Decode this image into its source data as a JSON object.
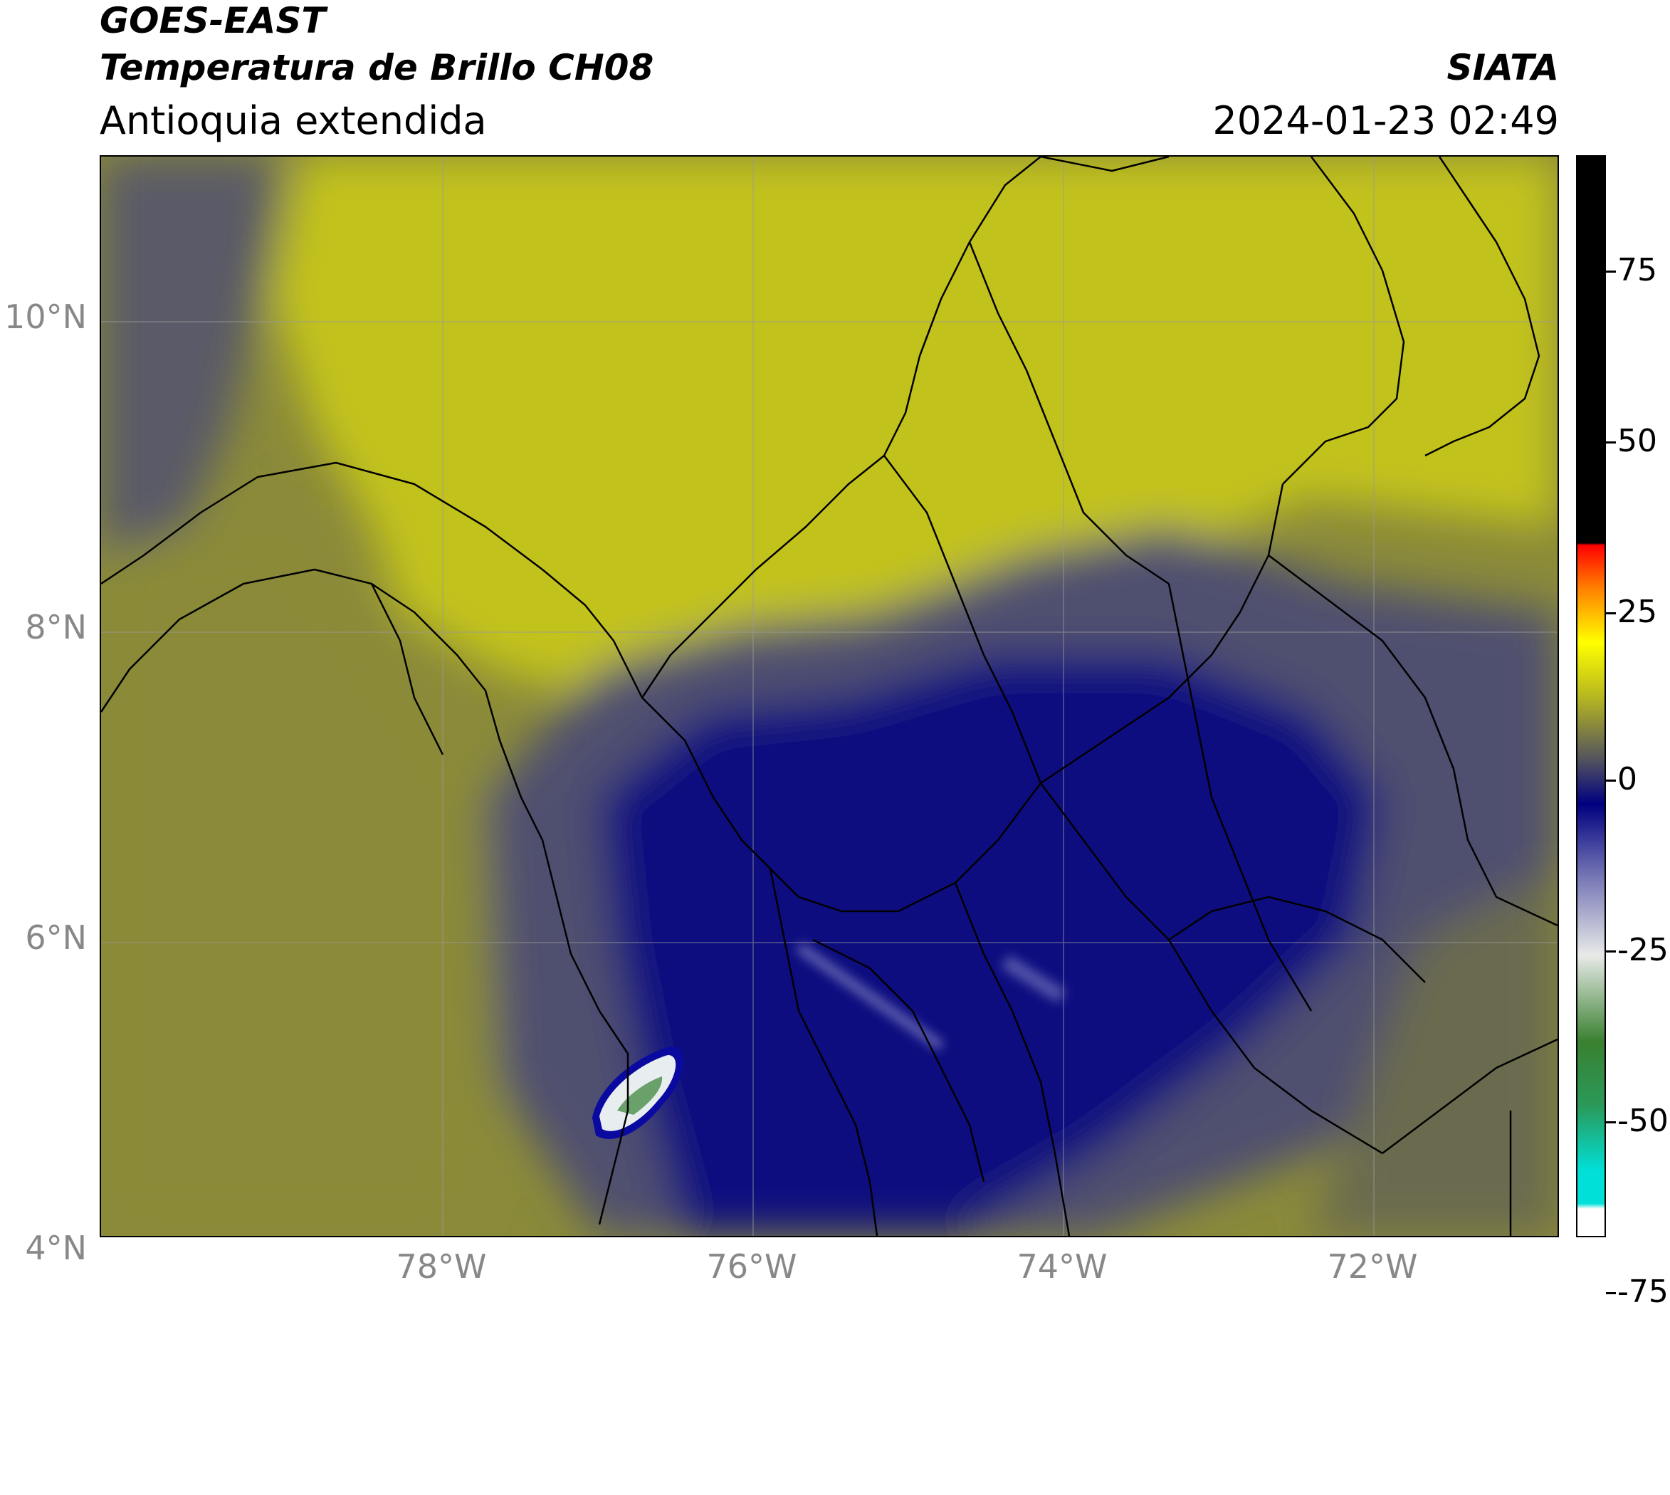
{
  "header": {
    "satellite": "GOES-EAST",
    "product": "Temperatura de Brillo CH08",
    "region": "Antioquia extendida",
    "organization": "SIATA",
    "datetime": "2024-01-23 02:49"
  },
  "map": {
    "latitude_labels": [
      "10°N",
      "8°N",
      "6°N",
      "4°N"
    ],
    "longitude_labels": [
      "78°W",
      "76°W",
      "74°W",
      "72°W"
    ],
    "colors": {
      "warm_yellow": "#c2c21a",
      "olive": "#8a8a3a",
      "gray_blue": "#505070",
      "deep_blue": "#0a0a7a",
      "cold_white": "#e8eef0",
      "cold_green": "#3a8a3a"
    }
  },
  "colorbar": {
    "tick_labels": [
      "75",
      "50",
      "25",
      "0",
      "-25",
      "-50",
      "-75"
    ],
    "colors": [
      "#ffffff",
      "#00e0d8",
      "#2a9a5a",
      "#3a8030",
      "#e8eae8",
      "#6a6ab0",
      "#000080",
      "#505060",
      "#b8b820",
      "#ffff00",
      "#ff8000",
      "#ff0000",
      "#000000"
    ]
  }
}
